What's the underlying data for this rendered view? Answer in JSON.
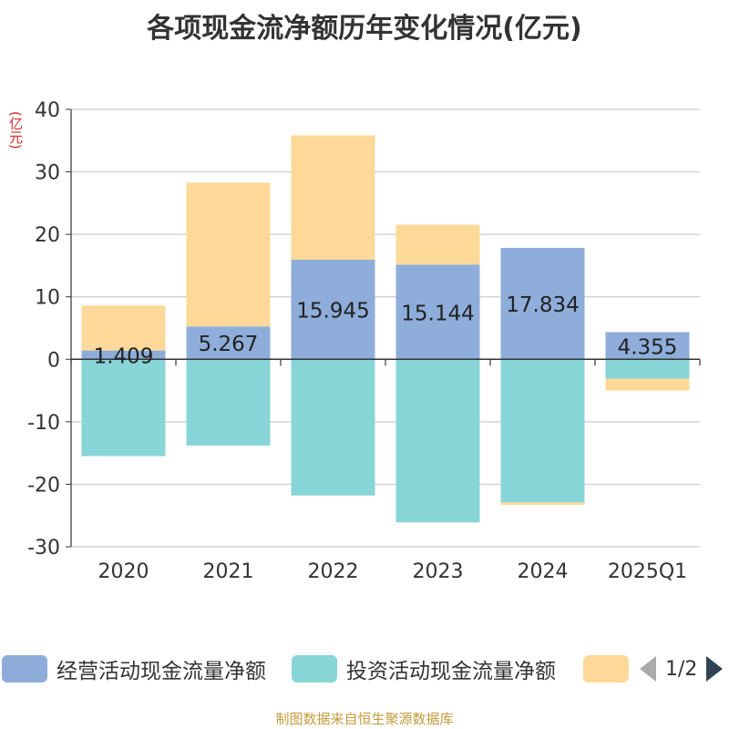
{
  "title": "各项现金流净额历年变化情况(亿元)",
  "unit_label": "(亿元)",
  "footer": "制图数据来自恒生聚源数据库",
  "legend": {
    "items": [
      {
        "label": "经营活动现金流量净额",
        "color": "#8eaddb"
      },
      {
        "label": "投资活动现金流量净额",
        "color": "#88d5d8"
      },
      {
        "label": "",
        "color": "#fdd999"
      }
    ],
    "page_text": "1/2"
  },
  "chart_data": {
    "type": "bar",
    "stacked": true,
    "categories": [
      "2020",
      "2021",
      "2022",
      "2023",
      "2024",
      "2025Q1"
    ],
    "series": [
      {
        "name": "经营活动现金流量净额",
        "color": "#8eaddb",
        "values": [
          1.409,
          5.267,
          15.945,
          15.144,
          17.834,
          4.355
        ],
        "show_labels": true
      },
      {
        "name": "投资活动现金流量净额",
        "color": "#88d5d8",
        "values": [
          -15.5,
          -13.8,
          -21.8,
          -26.1,
          -22.9,
          -3.1
        ],
        "show_labels": false
      },
      {
        "name": "",
        "color": "#fdd999",
        "values": [
          7.2,
          23.0,
          19.9,
          6.4,
          -0.4,
          -1.9
        ],
        "show_labels": false
      }
    ],
    "data_labels": [
      "1.409",
      "5.267",
      "15.945",
      "15.144",
      "17.834",
      "4.355"
    ],
    "ylim": [
      -30,
      40
    ],
    "yticks": [
      -30,
      -20,
      -10,
      0,
      10,
      20,
      30,
      40
    ],
    "grid": true,
    "legend_position": "bottom"
  }
}
